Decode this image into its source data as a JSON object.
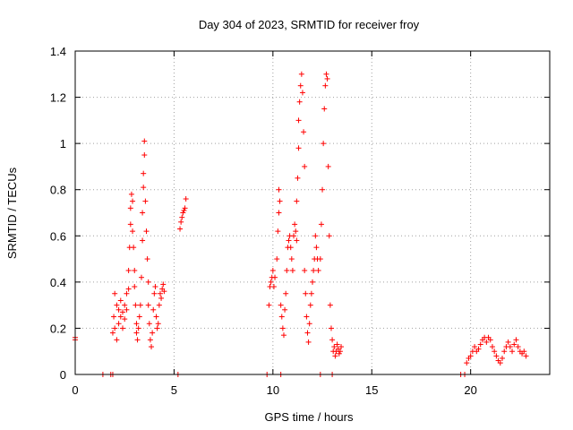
{
  "chart_data": {
    "type": "scatter",
    "title": "Day 304 of 2023, SRMTID for receiver froy",
    "xlabel": "GPS time / hours",
    "ylabel": "SRMTID / TECUs",
    "xlim": [
      0,
      24
    ],
    "ylim": [
      0,
      1.4
    ],
    "xticks": [
      0,
      5,
      10,
      15,
      20
    ],
    "xtick_labels": [
      "0",
      "5",
      "10",
      "15",
      "20"
    ],
    "yticks": [
      0,
      0.2,
      0.4,
      0.6,
      0.8,
      1.0,
      1.2,
      1.4
    ],
    "ytick_labels": [
      "0",
      "0.2",
      "0.4",
      "0.6",
      "0.8",
      "1",
      "1.2",
      "1.4"
    ],
    "grid": true,
    "marker": "+",
    "series": [
      {
        "name": "SRMTID",
        "color": "#ff0000",
        "points": [
          [
            0.0,
            0.16
          ],
          [
            0.0,
            0.15
          ],
          [
            1.4,
            0.0
          ],
          [
            1.8,
            0.0
          ],
          [
            1.9,
            0.0
          ],
          [
            5.2,
            0.0
          ],
          [
            9.7,
            0.0
          ],
          [
            10.4,
            0.0
          ],
          [
            12.4,
            0.0
          ],
          [
            13.0,
            0.0
          ],
          [
            19.5,
            0.0
          ],
          [
            19.7,
            0.0
          ],
          [
            1.9,
            0.18
          ],
          [
            1.95,
            0.25
          ],
          [
            2.0,
            0.35
          ],
          [
            2.0,
            0.2
          ],
          [
            2.1,
            0.3
          ],
          [
            2.1,
            0.15
          ],
          [
            2.2,
            0.28
          ],
          [
            2.2,
            0.22
          ],
          [
            2.3,
            0.25
          ],
          [
            2.3,
            0.32
          ],
          [
            2.4,
            0.27
          ],
          [
            2.4,
            0.2
          ],
          [
            2.5,
            0.3
          ],
          [
            2.5,
            0.24
          ],
          [
            2.6,
            0.28
          ],
          [
            2.6,
            0.35
          ],
          [
            2.7,
            0.37
          ],
          [
            2.7,
            0.45
          ],
          [
            2.75,
            0.55
          ],
          [
            2.8,
            0.65
          ],
          [
            2.8,
            0.72
          ],
          [
            2.85,
            0.78
          ],
          [
            2.9,
            0.75
          ],
          [
            2.9,
            0.62
          ],
          [
            2.95,
            0.55
          ],
          [
            3.0,
            0.45
          ],
          [
            3.0,
            0.38
          ],
          [
            3.05,
            0.3
          ],
          [
            3.1,
            0.22
          ],
          [
            3.1,
            0.18
          ],
          [
            3.15,
            0.15
          ],
          [
            3.2,
            0.2
          ],
          [
            3.25,
            0.25
          ],
          [
            3.3,
            0.3
          ],
          [
            3.35,
            0.42
          ],
          [
            3.4,
            0.58
          ],
          [
            3.4,
            0.7
          ],
          [
            3.45,
            0.81
          ],
          [
            3.45,
            0.87
          ],
          [
            3.5,
            0.95
          ],
          [
            3.5,
            1.01
          ],
          [
            3.55,
            0.75
          ],
          [
            3.6,
            0.62
          ],
          [
            3.65,
            0.5
          ],
          [
            3.7,
            0.4
          ],
          [
            3.7,
            0.3
          ],
          [
            3.75,
            0.22
          ],
          [
            3.8,
            0.15
          ],
          [
            3.85,
            0.12
          ],
          [
            3.9,
            0.18
          ],
          [
            3.95,
            0.28
          ],
          [
            4.0,
            0.35
          ],
          [
            4.05,
            0.38
          ],
          [
            4.1,
            0.25
          ],
          [
            4.15,
            0.2
          ],
          [
            4.2,
            0.22
          ],
          [
            4.25,
            0.3
          ],
          [
            4.3,
            0.35
          ],
          [
            4.35,
            0.33
          ],
          [
            4.4,
            0.37
          ],
          [
            4.45,
            0.39
          ],
          [
            4.5,
            0.36
          ],
          [
            5.3,
            0.63
          ],
          [
            5.35,
            0.66
          ],
          [
            5.4,
            0.68
          ],
          [
            5.45,
            0.7
          ],
          [
            5.5,
            0.71
          ],
          [
            5.55,
            0.72
          ],
          [
            5.6,
            0.76
          ],
          [
            9.8,
            0.3
          ],
          [
            9.85,
            0.38
          ],
          [
            9.9,
            0.4
          ],
          [
            9.95,
            0.42
          ],
          [
            10.0,
            0.45
          ],
          [
            10.05,
            0.38
          ],
          [
            10.1,
            0.42
          ],
          [
            10.2,
            0.5
          ],
          [
            10.25,
            0.62
          ],
          [
            10.3,
            0.7
          ],
          [
            10.3,
            0.8
          ],
          [
            10.35,
            0.75
          ],
          [
            10.4,
            0.3
          ],
          [
            10.45,
            0.25
          ],
          [
            10.5,
            0.2
          ],
          [
            10.55,
            0.17
          ],
          [
            10.6,
            0.28
          ],
          [
            10.65,
            0.35
          ],
          [
            10.7,
            0.45
          ],
          [
            10.75,
            0.55
          ],
          [
            10.8,
            0.58
          ],
          [
            10.85,
            0.6
          ],
          [
            10.9,
            0.55
          ],
          [
            10.95,
            0.5
          ],
          [
            11.0,
            0.45
          ],
          [
            11.05,
            0.6
          ],
          [
            11.1,
            0.65
          ],
          [
            11.15,
            0.62
          ],
          [
            11.2,
            0.58
          ],
          [
            11.2,
            0.75
          ],
          [
            11.25,
            0.85
          ],
          [
            11.3,
            0.98
          ],
          [
            11.3,
            1.1
          ],
          [
            11.35,
            1.18
          ],
          [
            11.4,
            1.25
          ],
          [
            11.45,
            1.3
          ],
          [
            11.5,
            1.22
          ],
          [
            11.55,
            1.05
          ],
          [
            11.6,
            0.9
          ],
          [
            11.6,
            0.45
          ],
          [
            11.65,
            0.35
          ],
          [
            11.7,
            0.25
          ],
          [
            11.75,
            0.18
          ],
          [
            11.8,
            0.14
          ],
          [
            11.85,
            0.22
          ],
          [
            11.9,
            0.3
          ],
          [
            11.95,
            0.35
          ],
          [
            12.0,
            0.4
          ],
          [
            12.05,
            0.45
          ],
          [
            12.1,
            0.5
          ],
          [
            12.15,
            0.6
          ],
          [
            12.2,
            0.55
          ],
          [
            12.25,
            0.5
          ],
          [
            12.3,
            0.45
          ],
          [
            12.4,
            0.5
          ],
          [
            12.45,
            0.65
          ],
          [
            12.5,
            0.8
          ],
          [
            12.55,
            1.0
          ],
          [
            12.6,
            1.15
          ],
          [
            12.65,
            1.25
          ],
          [
            12.7,
            1.3
          ],
          [
            12.75,
            1.28
          ],
          [
            12.8,
            0.9
          ],
          [
            12.85,
            0.6
          ],
          [
            12.9,
            0.3
          ],
          [
            12.95,
            0.2
          ],
          [
            13.0,
            0.15
          ],
          [
            13.05,
            0.1
          ],
          [
            13.1,
            0.12
          ],
          [
            13.15,
            0.08
          ],
          [
            13.2,
            0.1
          ],
          [
            13.25,
            0.13
          ],
          [
            13.3,
            0.11
          ],
          [
            13.35,
            0.09
          ],
          [
            13.4,
            0.1
          ],
          [
            13.45,
            0.12
          ],
          [
            19.8,
            0.05
          ],
          [
            19.9,
            0.07
          ],
          [
            20.0,
            0.08
          ],
          [
            20.1,
            0.1
          ],
          [
            20.2,
            0.12
          ],
          [
            20.3,
            0.1
          ],
          [
            20.4,
            0.11
          ],
          [
            20.5,
            0.13
          ],
          [
            20.6,
            0.15
          ],
          [
            20.7,
            0.16
          ],
          [
            20.8,
            0.14
          ],
          [
            20.9,
            0.16
          ],
          [
            21.0,
            0.15
          ],
          [
            21.1,
            0.12
          ],
          [
            21.2,
            0.1
          ],
          [
            21.3,
            0.08
          ],
          [
            21.4,
            0.06
          ],
          [
            21.5,
            0.05
          ],
          [
            21.6,
            0.07
          ],
          [
            21.7,
            0.1
          ],
          [
            21.8,
            0.12
          ],
          [
            21.9,
            0.14
          ],
          [
            22.0,
            0.12
          ],
          [
            22.1,
            0.1
          ],
          [
            22.2,
            0.13
          ],
          [
            22.3,
            0.15
          ],
          [
            22.4,
            0.12
          ],
          [
            22.5,
            0.1
          ],
          [
            22.6,
            0.09
          ],
          [
            22.7,
            0.1
          ],
          [
            22.8,
            0.08
          ]
        ]
      }
    ]
  }
}
